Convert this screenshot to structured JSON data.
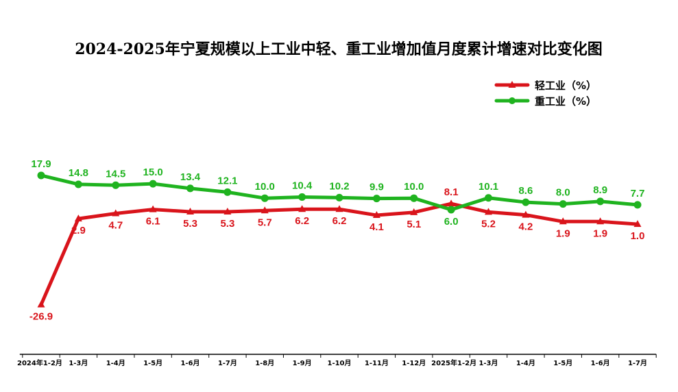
{
  "chart_data": {
    "type": "line",
    "title": "2024-2025年宁夏规模以上工业中轻、重工业增加值月度累计增速对比变化图",
    "categories": [
      "2024年1-2月",
      "1-3月",
      "1-4月",
      "1-5月",
      "1-6月",
      "1-7月",
      "1-8月",
      "1-9月",
      "1-10月",
      "1-11月",
      "1-12月",
      "2025年1-2月",
      "1-3月",
      "1-4月",
      "1-5月",
      "1-6月",
      "1-7月"
    ],
    "series": [
      {
        "name": "轻工业（%）",
        "color": "#d9141b",
        "marker": "triangle",
        "values": [
          -26.9,
          2.9,
          4.7,
          6.1,
          5.3,
          5.3,
          5.7,
          6.2,
          6.2,
          4.1,
          5.1,
          8.1,
          5.2,
          4.2,
          1.9,
          1.9,
          1.0
        ],
        "labels": [
          "-26.9",
          "2.9",
          "4.7",
          "6.1",
          "5.3",
          "5.3",
          "5.7",
          "6.2",
          "6.2",
          "4.1",
          "5.1",
          "8.1",
          "5.2",
          "4.2",
          "1.9",
          "1.9",
          "1.0"
        ]
      },
      {
        "name": "重工业（%）",
        "color": "#1fb31f",
        "marker": "circle",
        "values": [
          17.9,
          14.8,
          14.5,
          15.0,
          13.4,
          12.1,
          10.0,
          10.4,
          10.2,
          9.9,
          10.0,
          6.0,
          10.1,
          8.6,
          8.0,
          8.9,
          7.7
        ],
        "labels": [
          "17.9",
          "14.8",
          "14.5",
          "15.0",
          "13.4",
          "12.1",
          "10.0",
          "10.4",
          "10.2",
          "9.9",
          "10.0",
          "6.0",
          "10.1",
          "8.6",
          "8.0",
          "8.9",
          "7.7"
        ]
      }
    ],
    "legend": "top-right",
    "grid": false,
    "ylim": [
      -30,
      25
    ]
  }
}
